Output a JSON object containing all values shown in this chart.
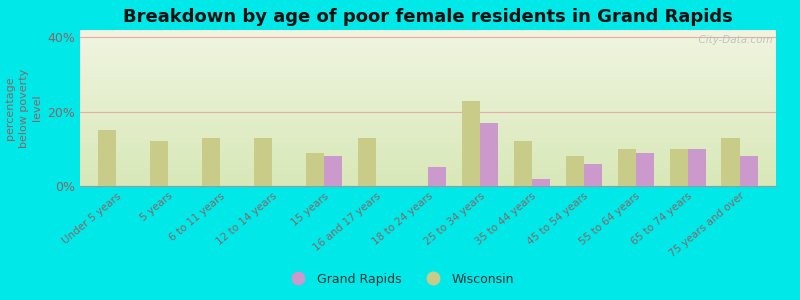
{
  "categories": [
    "Under 5 years",
    "5 years",
    "6 to 11 years",
    "12 to 14 years",
    "15 years",
    "16 and 17 years",
    "18 to 24 years",
    "25 to 34 years",
    "35 to 44 years",
    "45 to 54 years",
    "55 to 64 years",
    "65 to 74 years",
    "75 years and over"
  ],
  "grand_rapids": [
    0,
    0,
    0,
    0,
    8.0,
    0,
    5.0,
    17.0,
    2.0,
    6.0,
    9.0,
    10.0,
    8.0
  ],
  "wisconsin": [
    15.0,
    12.0,
    13.0,
    13.0,
    9.0,
    13.0,
    0,
    23.0,
    12.0,
    8.0,
    10.0,
    10.0,
    13.0
  ],
  "gr_color": "#cc99cc",
  "wi_color": "#c8cc88",
  "title": "Breakdown by age of poor female residents in Grand Rapids",
  "ylabel": "percentage\nbelow poverty\nlevel",
  "ylim": [
    0,
    42
  ],
  "yticks": [
    0,
    20,
    40
  ],
  "ytick_labels": [
    "0%",
    "20%",
    "40%"
  ],
  "plot_bg_top": "#d8e8b8",
  "plot_bg_bottom": "#f0f5e0",
  "fig_bg": "#00e8e8",
  "legend_gr": "Grand Rapids",
  "legend_wi": "Wisconsin",
  "bar_width": 0.35,
  "title_fontsize": 13,
  "grid_color": "#e8aaaa",
  "label_color": "#886666",
  "watermark": "  City-Data.com"
}
